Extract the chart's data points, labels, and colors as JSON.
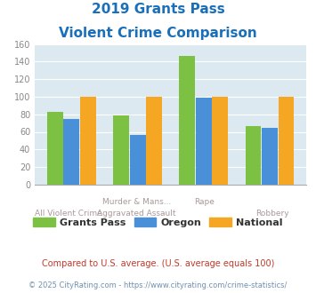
{
  "title_line1": "2019 Grants Pass",
  "title_line2": "Violent Crime Comparison",
  "title_color": "#1a6fba",
  "cat_labels_top": [
    "",
    "Murder & Mans...",
    "",
    "Rape",
    ""
  ],
  "cat_labels_bottom": [
    "All Violent Crime",
    "Aggravated Assault",
    "",
    "Robbery",
    ""
  ],
  "grants_pass": [
    83,
    79,
    146,
    67
  ],
  "oregon": [
    75,
    56,
    99,
    65
  ],
  "national": [
    100,
    100,
    100,
    100
  ],
  "grants_pass_color": "#7dc142",
  "oregon_color": "#4a90d9",
  "national_color": "#f5a623",
  "ylim": [
    0,
    160
  ],
  "yticks": [
    0,
    20,
    40,
    60,
    80,
    100,
    120,
    140,
    160
  ],
  "plot_bg": "#dce9f0",
  "legend_labels": [
    "Grants Pass",
    "Oregon",
    "National"
  ],
  "footnote1": "Compared to U.S. average. (U.S. average equals 100)",
  "footnote2": "© 2025 CityRating.com - https://www.cityrating.com/crime-statistics/",
  "footnote1_color": "#c0392b",
  "footnote2_color": "#7090b0"
}
